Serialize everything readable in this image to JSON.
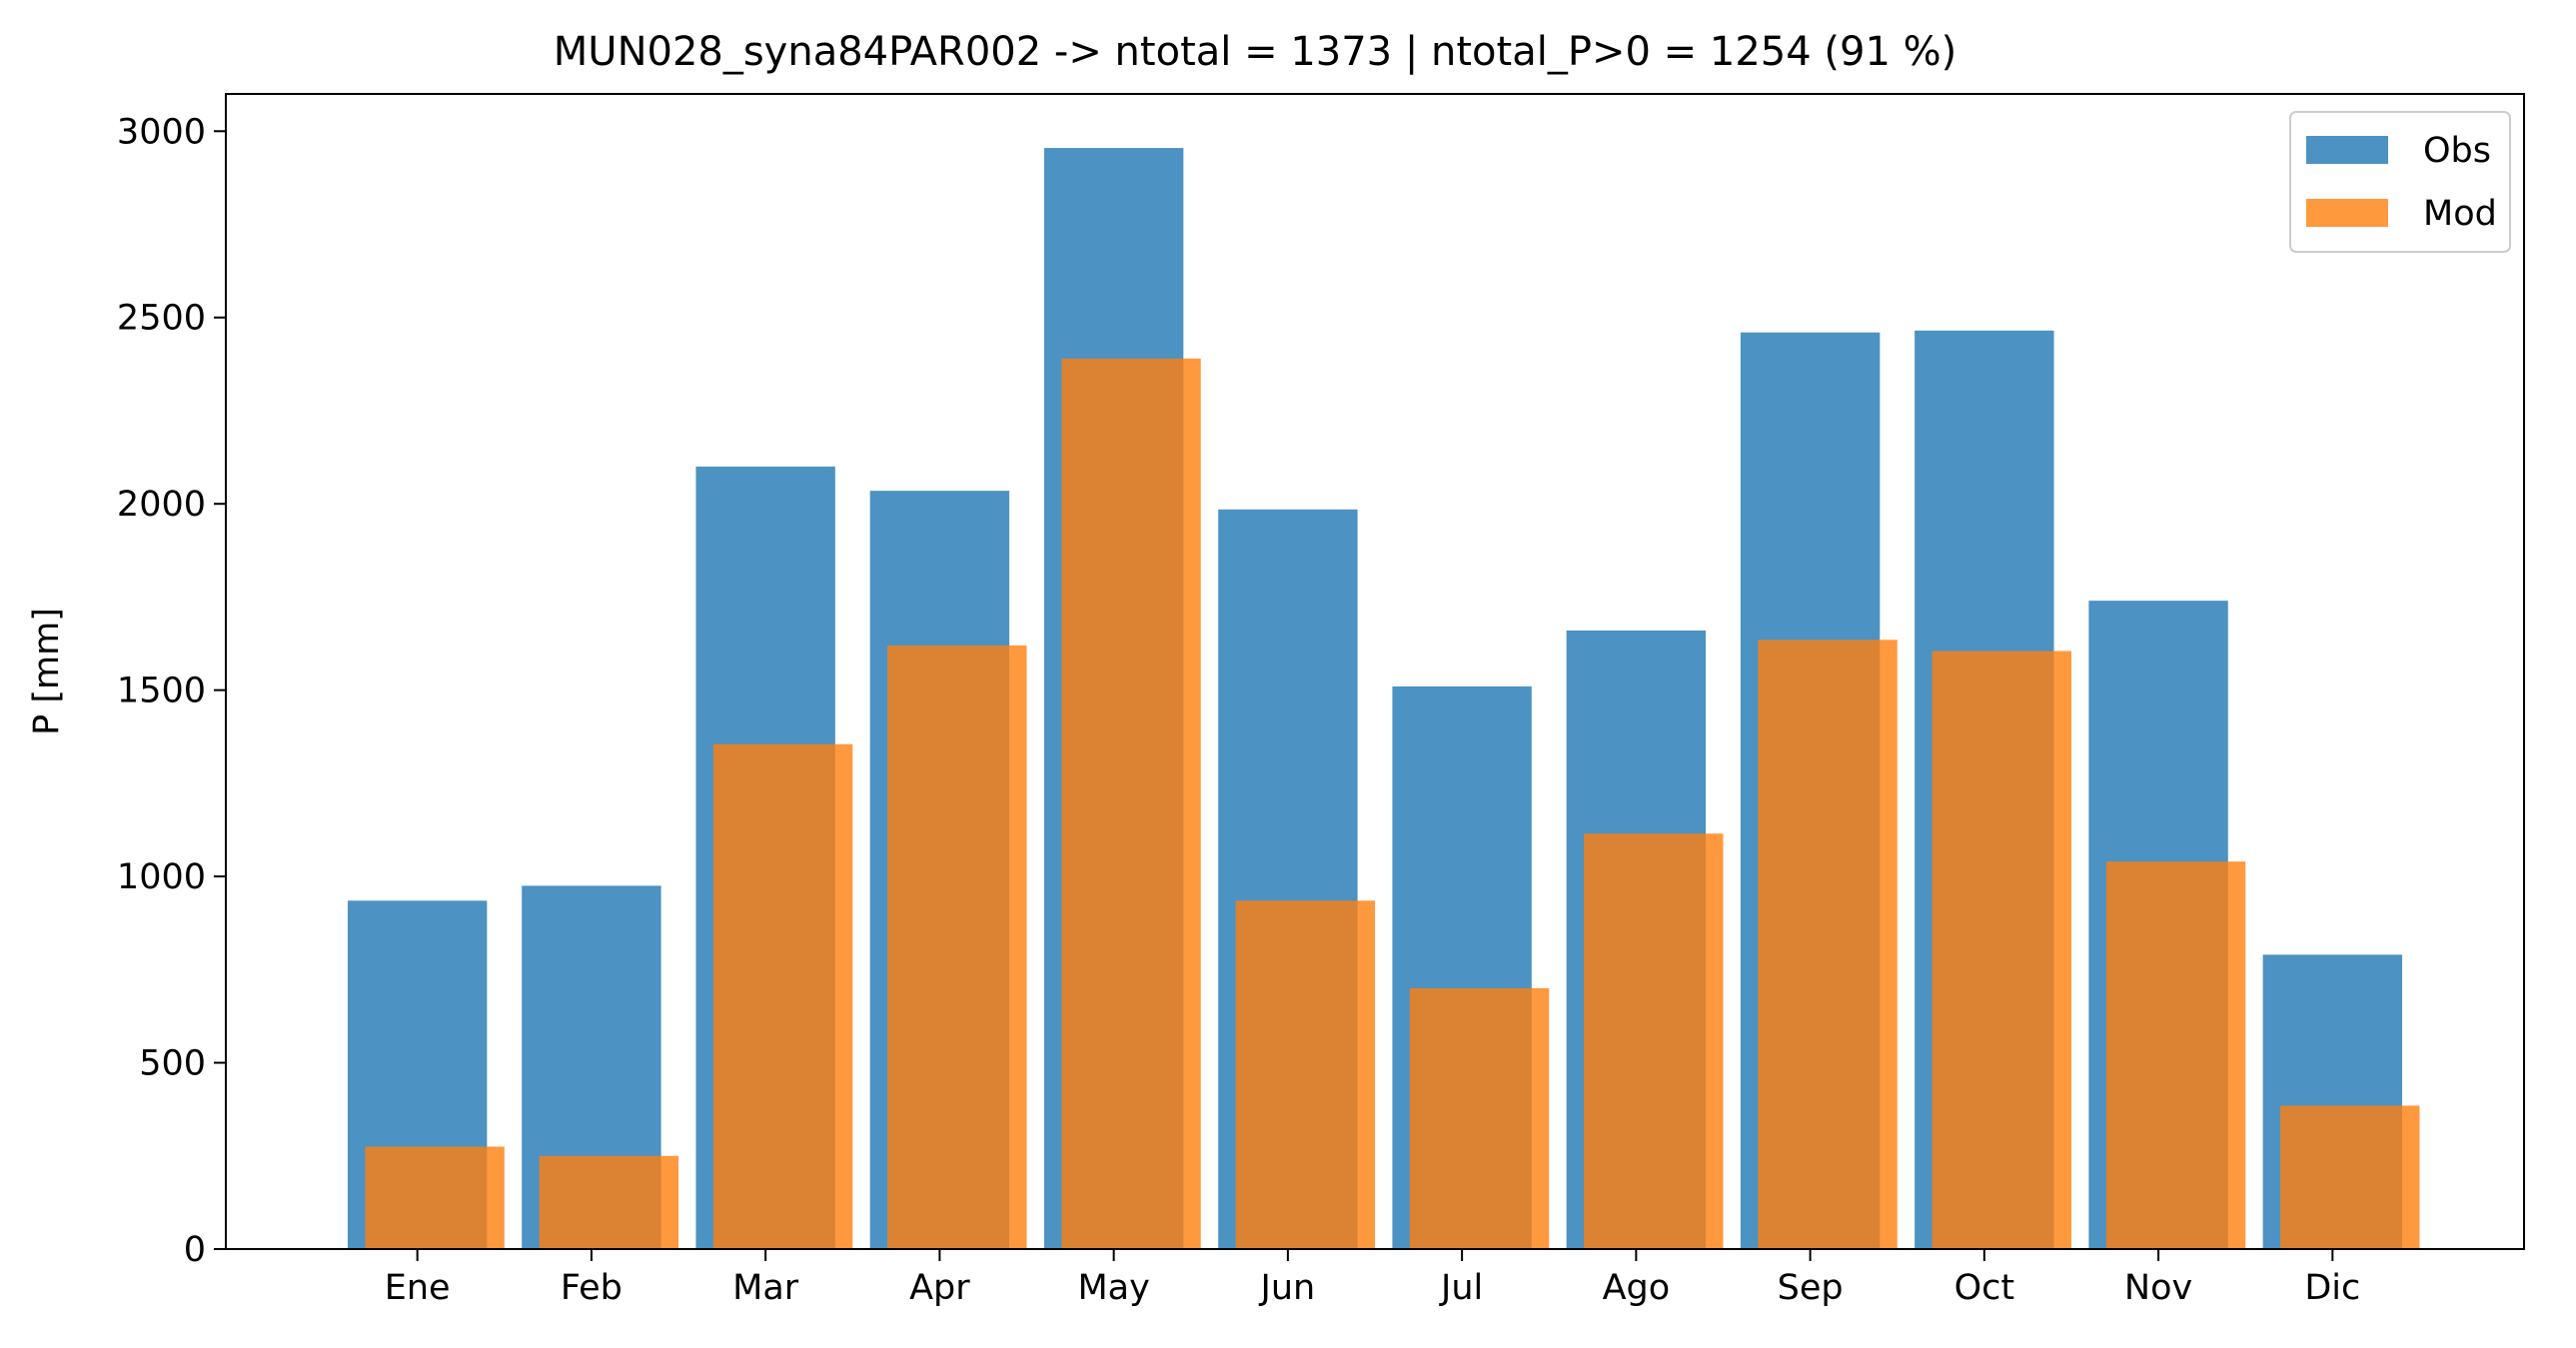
{
  "chart_data": {
    "type": "bar",
    "title": "MUN028_syna84PAR002 -> ntotal = 1373 | ntotal_P>0 = 1254 (91 %)",
    "xlabel": "",
    "ylabel": "P [mm]",
    "categories": [
      "Ene",
      "Feb",
      "Mar",
      "Apr",
      "May",
      "Jun",
      "Jul",
      "Ago",
      "Sep",
      "Oct",
      "Nov",
      "Dic"
    ],
    "series": [
      {
        "name": "Obs",
        "color": "#1f77b4",
        "opacity": 0.8,
        "values": [
          935,
          975,
          2100,
          2035,
          2955,
          1985,
          1510,
          1660,
          2460,
          2465,
          1740,
          790
        ]
      },
      {
        "name": "Mod",
        "color": "#ff7f0e",
        "opacity": 0.8,
        "values": [
          275,
          250,
          1355,
          1620,
          2390,
          935,
          700,
          1115,
          1635,
          1605,
          1040,
          385
        ]
      }
    ],
    "ylim": [
      0,
      3100
    ],
    "yticks": [
      0,
      500,
      1000,
      1500,
      2000,
      2500,
      3000
    ],
    "grid": false,
    "legend": "top-right"
  }
}
